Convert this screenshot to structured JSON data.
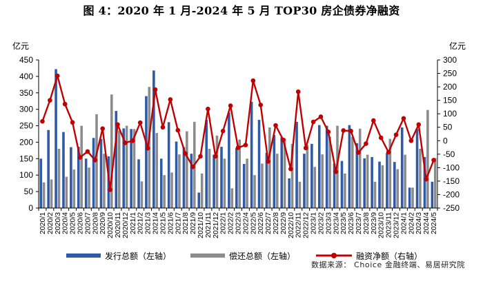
{
  "title": "图 4：2020 年 1 月-2024 年 5 月 TOP30 房企债券净融资",
  "source": "数据来源： Choice 金融终端、易居研究院",
  "chart_data": {
    "type": "bar",
    "left_unit": "亿元",
    "right_unit": "亿元",
    "left_ylim": [
      0,
      450
    ],
    "left_ticks": [
      0,
      50,
      100,
      150,
      200,
      250,
      300,
      350,
      400,
      450
    ],
    "right_ylim": [
      -250,
      300
    ],
    "right_ticks": [
      -250,
      -200,
      -150,
      -100,
      -50,
      0,
      50,
      100,
      150,
      200,
      250,
      300
    ],
    "grid": false,
    "legend_position": "bottom",
    "categories": [
      "2020/1",
      "2020/2",
      "2020/3",
      "2020/4",
      "2020/5",
      "2020/6",
      "2020/7",
      "2020/8",
      "2020/9",
      "2020/10",
      "2020/11",
      "2020/12",
      "2021/1",
      "2021/2",
      "2021/3",
      "2021/4",
      "2021/5",
      "2021/6",
      "2021/7",
      "2021/8",
      "2021/9",
      "2021/10",
      "2021/11",
      "2021/12",
      "2022/1",
      "2022/2",
      "2022/3",
      "2022/4",
      "2022/5",
      "2022/6",
      "2022/7",
      "2022/8",
      "2022/9",
      "2022/10",
      "2022/11",
      "2022/12",
      "2023/1",
      "2023/2",
      "2023/3",
      "2023/4",
      "2023/5",
      "2023/6",
      "2023/7",
      "2023/8",
      "2023/9",
      "2023/10",
      "2023/11",
      "2023/12",
      "2024/1",
      "2024/2",
      "2024/3",
      "2024/4",
      "2024/5"
    ],
    "series": [
      {
        "name": "发行总额（左轴）",
        "axis": "left",
        "kind": "bar",
        "color": "#2E5AA8",
        "values": [
          150,
          237,
          422,
          231,
          185,
          186,
          150,
          213,
          210,
          157,
          295,
          242,
          240,
          148,
          340,
          418,
          150,
          261,
          202,
          185,
          165,
          47,
          268,
          162,
          186,
          290,
          182,
          134,
          323,
          268,
          168,
          222,
          215,
          90,
          262,
          165,
          195,
          252,
          250,
          135,
          143,
          252,
          197,
          151,
          155,
          141,
          167,
          140,
          245,
          62,
          240,
          155,
          80
        ]
      },
      {
        "name": "偿还总额（左轴）",
        "axis": "left",
        "kind": "bar",
        "color": "#8C8C8C",
        "values": [
          78,
          87,
          180,
          95,
          117,
          250,
          123,
          285,
          165,
          345,
          235,
          250,
          240,
          81,
          368,
          228,
          100,
          108,
          163,
          233,
          262,
          105,
          180,
          220,
          150,
          60,
          208,
          150,
          100,
          135,
          245,
          165,
          212,
          195,
          80,
          192,
          125,
          163,
          217,
          250,
          105,
          216,
          241,
          162,
          80,
          130,
          210,
          118,
          162,
          62,
          180,
          298,
          152
        ]
      },
      {
        "name": "融资净额（右轴）",
        "axis": "right",
        "kind": "line",
        "color": "#C00000",
        "values": [
          72,
          150,
          241,
          136,
          68,
          -62,
          -40,
          -72,
          45,
          -182,
          60,
          -8,
          0,
          67,
          -28,
          190,
          50,
          153,
          39,
          -48,
          -97,
          -58,
          118,
          -58,
          36,
          130,
          -26,
          -16,
          223,
          133,
          -77,
          57,
          3,
          -105,
          182,
          -27,
          70,
          89,
          33,
          -115,
          38,
          36,
          -44,
          -11,
          75,
          11,
          -43,
          22,
          83,
          0,
          60,
          -143,
          -72
        ]
      }
    ]
  }
}
